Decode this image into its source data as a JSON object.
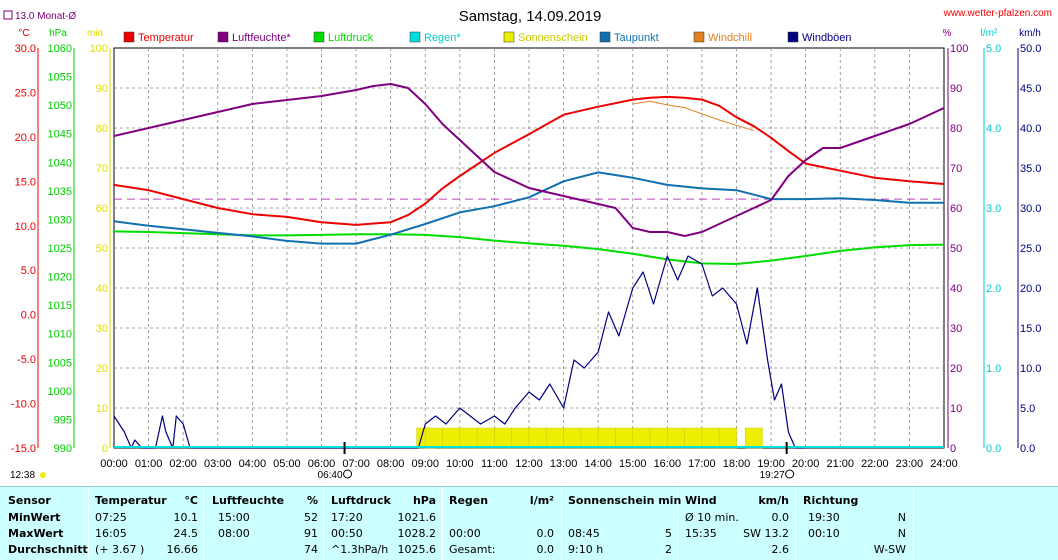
{
  "header": {
    "title": "Samstag, 14.09.2019",
    "site": "www.wetter-pfalzen.com",
    "avg_note": "13.0 Monat-Ø",
    "units_left": [
      "°C",
      "hPa",
      "min"
    ],
    "units_right": [
      "%",
      "l/m²",
      "km/h"
    ]
  },
  "legend": [
    {
      "label": "Temperatur",
      "color": "#ee0000"
    },
    {
      "label": "Luftfeuchte*",
      "color": "#800080"
    },
    {
      "label": "Luftdruck",
      "color": "#00dd00"
    },
    {
      "label": "Regen*",
      "color": "#00dddd"
    },
    {
      "label": "Sonnenschein",
      "color": "#eeee00"
    },
    {
      "label": "Taupunkt",
      "color": "#1070b0"
    },
    {
      "label": "Windchill",
      "color": "#e08020"
    },
    {
      "label": "Windböen",
      "color": "#000080"
    }
  ],
  "chart_data": {
    "type": "line",
    "x_ticks": [
      "00:00",
      "01:00",
      "02:00",
      "03:00",
      "04:00",
      "05:00",
      "06:00",
      "07:00",
      "08:00",
      "09:00",
      "10:00",
      "11:00",
      "12:00",
      "13:00",
      "14:00",
      "15:00",
      "16:00",
      "17:00",
      "18:00",
      "19:00",
      "20:00",
      "21:00",
      "22:00",
      "23:00",
      "24:00"
    ],
    "axes": {
      "temperature_c": {
        "ticks": [
          "30.0",
          "25.0",
          "20.0",
          "15.0",
          "10.0",
          "5.0",
          "0.0",
          "-5.0",
          "-10.0",
          "-15.0"
        ],
        "range": [
          -15,
          30
        ]
      },
      "pressure_hpa": {
        "ticks": [
          "1060",
          "1055",
          "1050",
          "1045",
          "1040",
          "1035",
          "1030",
          "1025",
          "1020",
          "1015",
          "1010",
          "1005",
          "1000",
          "995",
          "990"
        ],
        "range": [
          990,
          1060
        ]
      },
      "sunshine_min": {
        "ticks": [
          "100",
          "90",
          "80",
          "70",
          "60",
          "50",
          "40",
          "30",
          "20",
          "10",
          "0"
        ],
        "range": [
          0,
          100
        ]
      },
      "humidity_pct": {
        "ticks": [
          "100",
          "90",
          "80",
          "70",
          "60",
          "50",
          "40",
          "30",
          "20",
          "10",
          "0"
        ],
        "range": [
          0,
          100
        ]
      },
      "rain_l_m2": {
        "ticks": [
          "5.0",
          "4.0",
          "3.0",
          "2.0",
          "1.0",
          "0.0"
        ],
        "range": [
          0,
          5
        ]
      },
      "wind_kmh": {
        "ticks": [
          "50.0",
          "45.0",
          "40.0",
          "35.0",
          "30.0",
          "25.0",
          "20.0",
          "15.0",
          "10.0",
          "5.0",
          "0.0"
        ],
        "range": [
          0,
          50
        ]
      }
    },
    "reference_line": {
      "label": "13.0 Monat-Ø",
      "value": 13.0,
      "unit": "°C"
    },
    "sunrise": "06:40",
    "sunset": "19:27",
    "moonset": "12:38",
    "series": [
      {
        "name": "Temperatur",
        "axis": "temperature_c",
        "x": [
          0,
          1,
          2,
          3,
          4,
          5,
          6,
          7,
          8,
          8.5,
          9,
          9.5,
          10,
          11,
          12,
          13,
          14,
          15,
          15.5,
          16,
          16.5,
          17,
          17.5,
          18,
          18.5,
          19,
          19.5,
          20,
          21,
          22,
          23,
          24
        ],
        "y": [
          14.6,
          14.0,
          13.0,
          12.0,
          11.3,
          11.0,
          10.4,
          10.1,
          10.4,
          11.2,
          12.5,
          14.2,
          15.6,
          18.2,
          20.3,
          22.5,
          23.4,
          24.2,
          24.4,
          24.5,
          24.4,
          24.2,
          23.5,
          22.2,
          21.2,
          19.9,
          18.4,
          17.0,
          16.2,
          15.4,
          15.0,
          14.7
        ]
      },
      {
        "name": "Luftfeuchte*",
        "axis": "humidity_pct",
        "x": [
          0,
          1,
          2,
          3,
          4,
          5,
          6,
          7,
          7.5,
          8,
          8.5,
          9,
          9.5,
          10,
          10.5,
          11,
          12,
          13,
          13.5,
          14,
          14.5,
          15,
          15.5,
          16,
          16.5,
          17,
          17.5,
          18,
          18.5,
          19,
          19.5,
          20,
          20.5,
          21,
          22,
          23,
          24
        ],
        "y": [
          78,
          80,
          82,
          84,
          86,
          87,
          88,
          89.5,
          90.5,
          91,
          90,
          86,
          81,
          77,
          73,
          69,
          65,
          63,
          62,
          61,
          60,
          55,
          54,
          54,
          53,
          54,
          56,
          58,
          60,
          62,
          68,
          72,
          75,
          75,
          78,
          81,
          85
        ]
      },
      {
        "name": "Luftdruck",
        "axis": "pressure_hpa",
        "x": [
          0,
          1,
          2,
          3,
          4,
          5,
          6,
          7,
          8,
          9,
          10,
          11,
          12,
          13,
          14,
          15,
          16,
          17,
          18,
          19,
          20,
          21,
          22,
          23,
          24
        ],
        "y": [
          1027.9,
          1027.8,
          1027.6,
          1027.4,
          1027.2,
          1027.2,
          1027.3,
          1027.4,
          1027.4,
          1027.3,
          1026.9,
          1026.3,
          1025.8,
          1025.4,
          1024.8,
          1024.0,
          1023.0,
          1022.3,
          1022.2,
          1022.8,
          1023.6,
          1024.5,
          1025.1,
          1025.5,
          1025.6
        ]
      },
      {
        "name": "Taupunkt",
        "axis": "temperature_c",
        "x": [
          0,
          1,
          2,
          3,
          4,
          5,
          6,
          7,
          8,
          9,
          10,
          11,
          12,
          13,
          14,
          15,
          16,
          17,
          18,
          19,
          20,
          21,
          22,
          23,
          24
        ],
        "y": [
          10.5,
          10.0,
          9.6,
          9.2,
          8.8,
          8.3,
          8.0,
          8.0,
          9.0,
          10.2,
          11.5,
          12.2,
          13.2,
          15.0,
          16.0,
          15.4,
          14.6,
          14.2,
          14.0,
          13.0,
          13.0,
          13.1,
          12.9,
          12.6,
          12.6
        ]
      },
      {
        "name": "Windchill",
        "axis": "temperature_c",
        "x": [
          15,
          15.5,
          16,
          16.5,
          17,
          17.5,
          18,
          18.5
        ],
        "y": [
          23.7,
          24.0,
          23.6,
          23.3,
          22.6,
          21.9,
          21.3,
          20.7
        ]
      },
      {
        "name": "Windböen",
        "axis": "wind_kmh",
        "x": [
          0,
          0.3,
          0.5,
          0.6,
          0.8,
          1.0,
          1.2,
          1.4,
          1.5,
          1.7,
          1.8,
          2.0,
          2.2,
          2.3,
          2.5,
          8.8,
          9.0,
          9.3,
          9.6,
          10.0,
          10.3,
          10.6,
          11.0,
          11.3,
          11.6,
          12.0,
          12.3,
          12.6,
          13.0,
          13.3,
          13.6,
          14.0,
          14.3,
          14.6,
          15.0,
          15.3,
          15.6,
          16.0,
          16.3,
          16.6,
          17.0,
          17.3,
          17.6,
          18.0,
          18.3,
          18.6,
          18.9,
          19.1,
          19.3,
          19.5,
          19.7,
          19.9,
          20.0
        ],
        "y": [
          4,
          2,
          0,
          1,
          0,
          0,
          0,
          4,
          2,
          0,
          4,
          3,
          0,
          0,
          0,
          0,
          3,
          4,
          3,
          5,
          4,
          3,
          4,
          3,
          5,
          7,
          6,
          8,
          5,
          11,
          10,
          12,
          17,
          14,
          20,
          22,
          18,
          24,
          21,
          24,
          23,
          19,
          20,
          18,
          13,
          20,
          11,
          6,
          8,
          2,
          0,
          0,
          0
        ]
      }
    ],
    "sunshine_bars": {
      "axis": "sunshine_min",
      "x": [
        8.75,
        9,
        9.5,
        10,
        10.5,
        11,
        11.5,
        12,
        12.5,
        13,
        13.5,
        14,
        14.5,
        15,
        15.5,
        16,
        16.5,
        17,
        17.5,
        18,
        18.25
      ],
      "y": [
        5,
        5,
        5,
        5,
        5,
        5,
        5,
        5,
        5,
        5,
        5,
        5,
        5,
        5,
        5,
        5,
        5,
        5,
        5,
        0,
        5
      ]
    },
    "grid": true
  },
  "summary": {
    "headers": [
      "Sensor",
      "Temperatur",
      "°C",
      "Luftfeuchte",
      "%",
      "Luftdruck",
      "hPa",
      "Regen",
      "l/m²",
      "Sonnenschein min",
      "Wind",
      "km/h",
      "Richtung"
    ],
    "rows": [
      {
        "label": "MinWert",
        "temp_time": "07:25",
        "temp": "10.1",
        "hum_time": "15:00",
        "hum": "52",
        "press_time": "17:20",
        "press": "1021.6",
        "rain_time": "",
        "rain": "",
        "sun_time": "",
        "sun": "",
        "wind_time": "Ø 10 min.",
        "wind": "0.0",
        "dir_time": "19:30",
        "dir": "N"
      },
      {
        "label": "MaxWert",
        "temp_time": "16:05",
        "temp": "24.5",
        "hum_time": "08:00",
        "hum": "91",
        "press_time": "00:50",
        "press": "1028.2",
        "rain_time": "00:00",
        "rain": "0.0",
        "sun_time": "08:45",
        "sun": "5",
        "wind_time": "15:35",
        "wind": "SW 13.2",
        "dir_time": "00:10",
        "dir": "N"
      },
      {
        "label": "Durchschnitt",
        "temp_time": "(+ 3.67 )",
        "temp": "16.66",
        "hum_time": "",
        "hum": "74",
        "press_time": "^1.3hPa/h",
        "press": "1025.6",
        "rain_time": "Gesamt:",
        "rain": "0.0",
        "sun_time": "9:10 h",
        "sun": "2",
        "wind_time": "",
        "wind": "2.6",
        "dir_time": "",
        "dir": "W-SW"
      }
    ]
  }
}
